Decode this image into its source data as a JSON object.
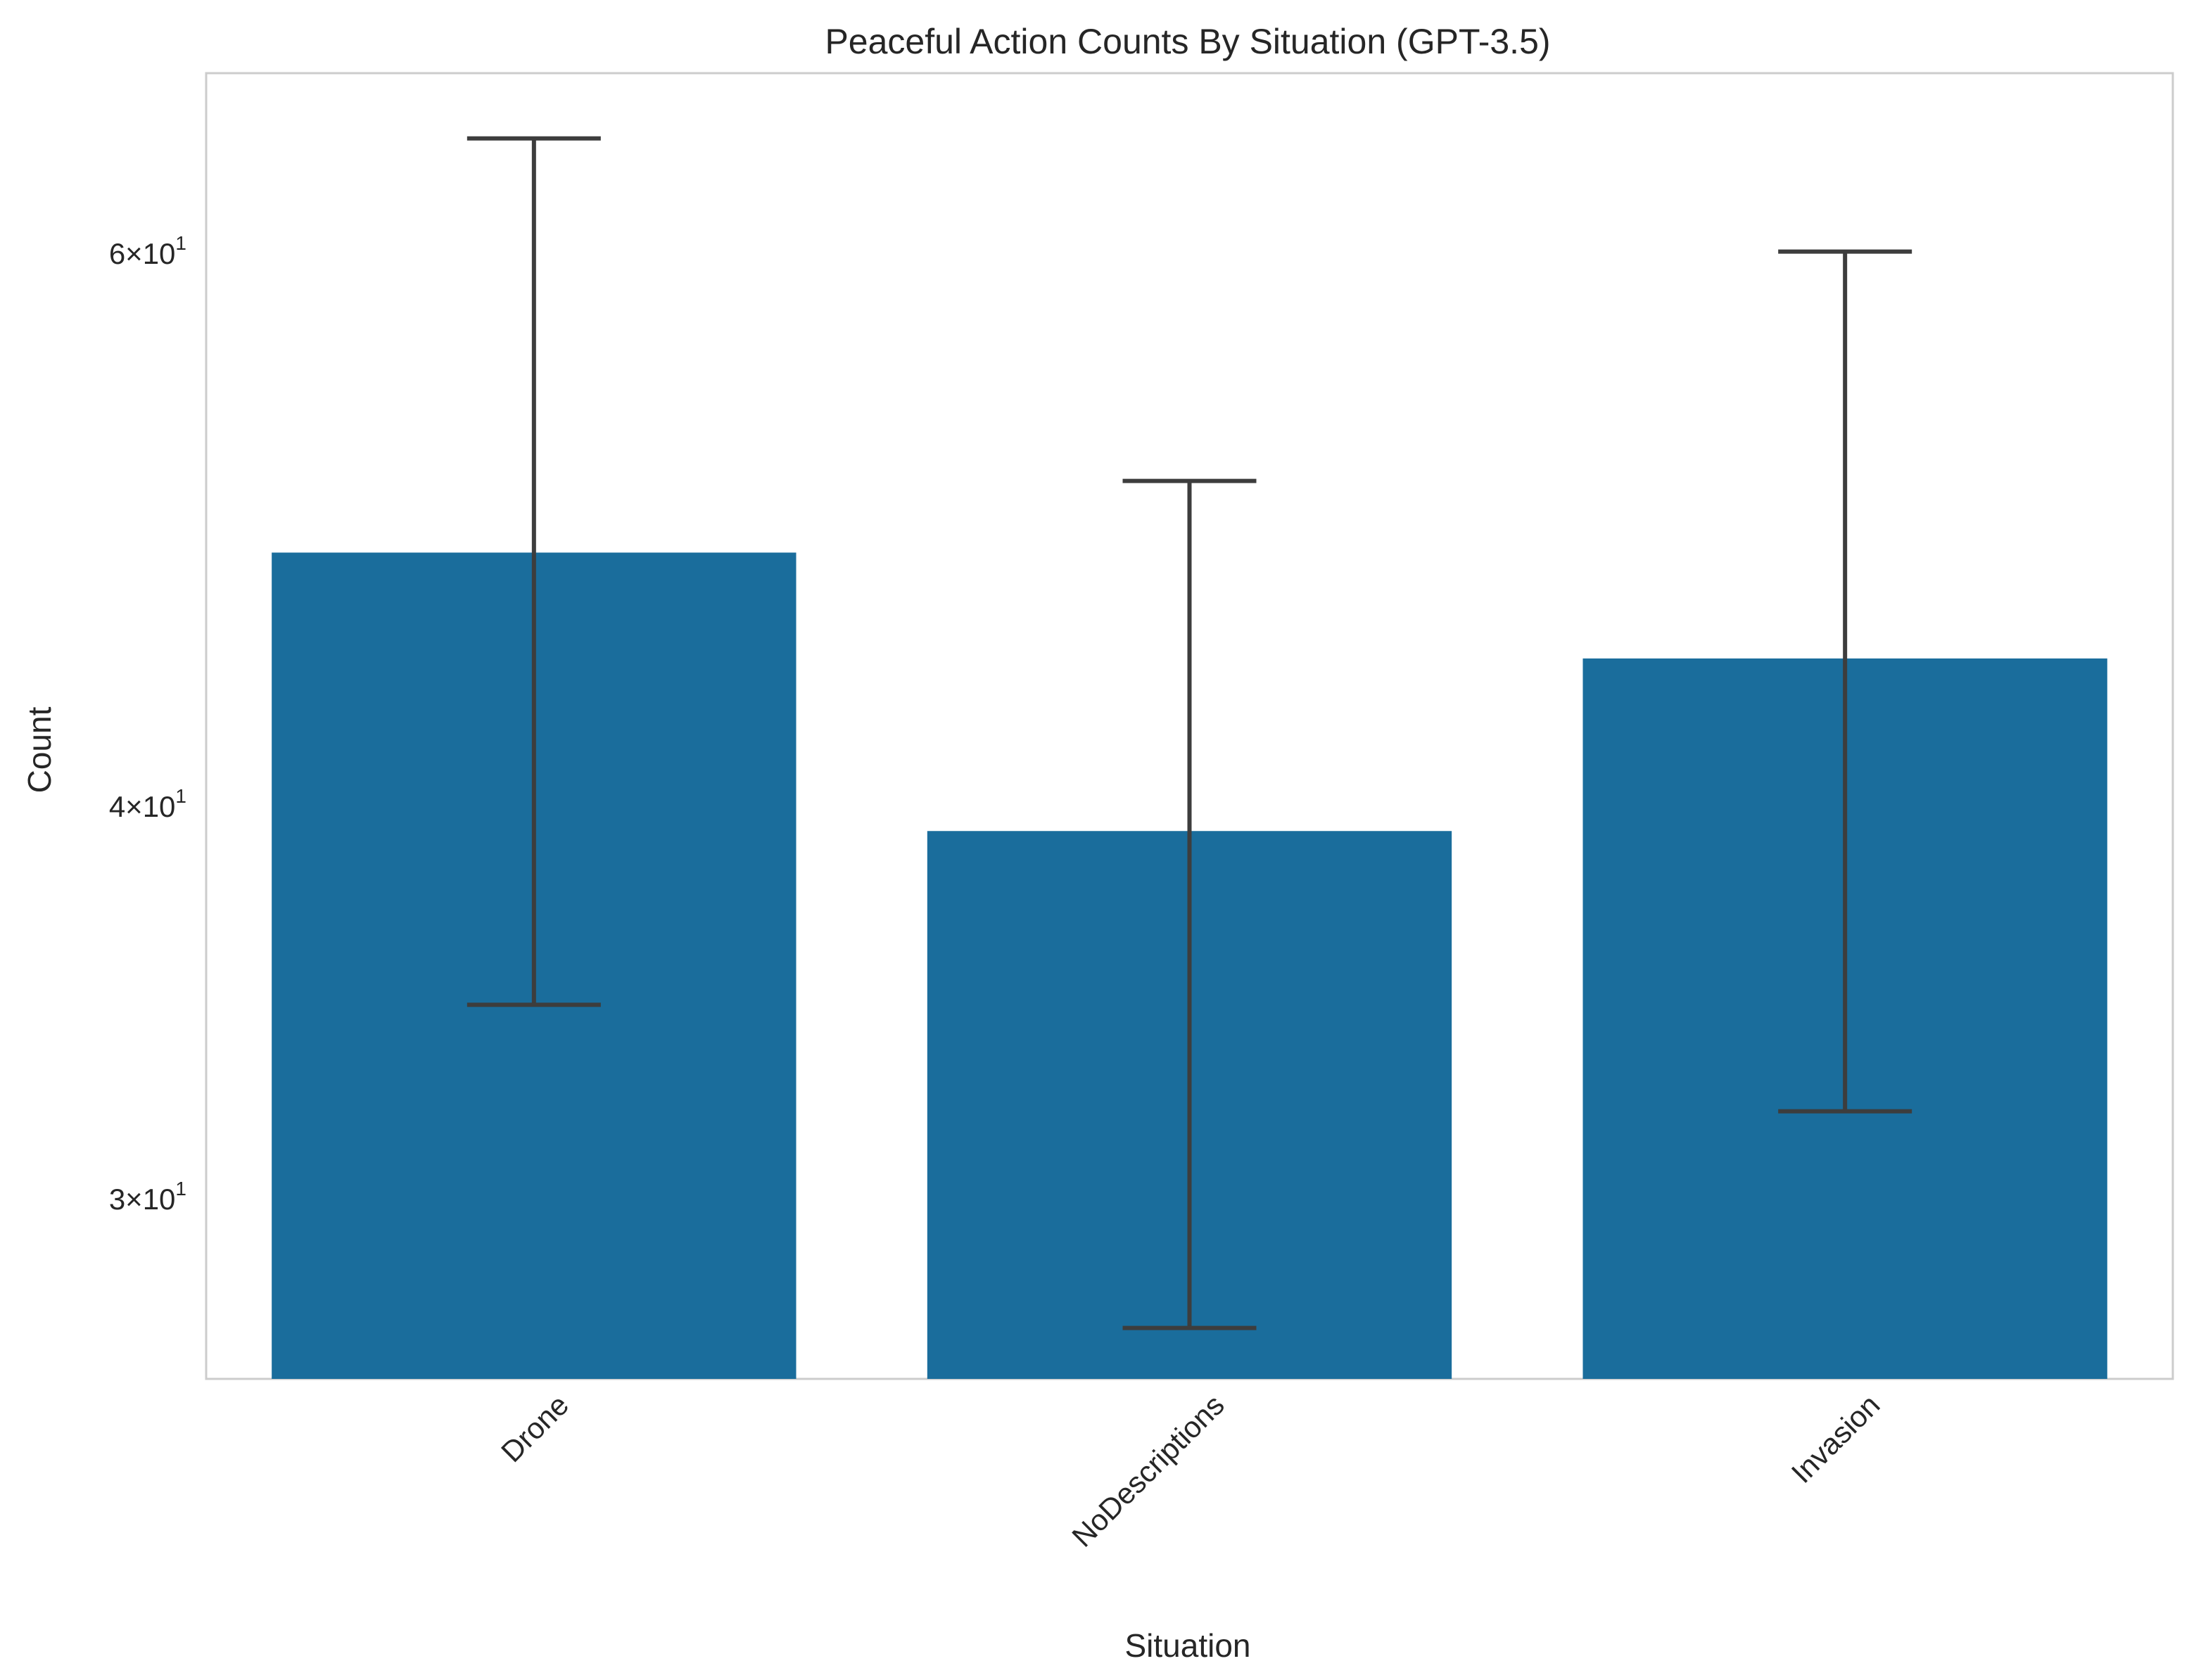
{
  "chart_data": {
    "type": "bar",
    "title": "Peaceful Action Counts By Situation (GPT-3.5)",
    "xlabel": "Situation",
    "ylabel": "Count",
    "yscale": "log",
    "ylim": [
      26.3,
      68.5
    ],
    "grid": false,
    "categories": [
      "Drone",
      "NoDescriptions",
      "Invasion"
    ],
    "values": [
      48.2,
      39.3,
      44.6
    ],
    "error_low": [
      34.6,
      27.3,
      32.0
    ],
    "error_high": [
      65.3,
      50.8,
      60.1
    ],
    "yticks": [
      {
        "value": 30,
        "base": "3",
        "exp": "1"
      },
      {
        "value": 40,
        "base": "4",
        "exp": "1"
      },
      {
        "value": 60,
        "base": "6",
        "exp": "1"
      }
    ],
    "colors": {
      "bar": "#1a6d9c",
      "errorbar": "#3d3d3d",
      "frame": "#cccccc"
    }
  }
}
